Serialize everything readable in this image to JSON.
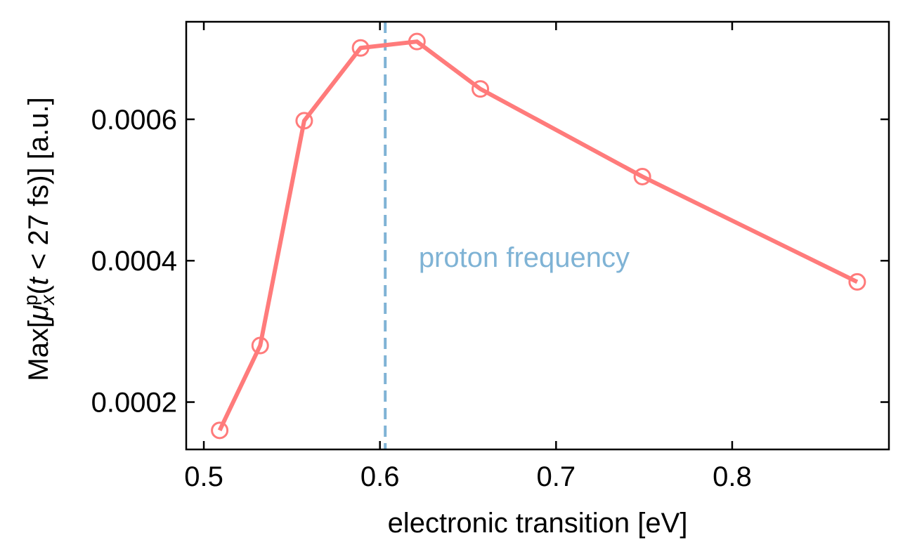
{
  "chart_data": {
    "type": "line",
    "title": "",
    "xlabel": "electronic transition [eV]",
    "ylabel": "Max[μₓᵖ(t < 27 fs)] [a.u.]",
    "xlim": [
      0.49,
      0.889
    ],
    "ylim": [
      0.000133,
      0.000738
    ],
    "xticks": [
      0.5,
      0.6,
      0.7,
      0.8
    ],
    "xtick_labels": [
      "0.5",
      "0.6",
      "0.7",
      "0.8"
    ],
    "yticks": [
      0.0002,
      0.0004,
      0.0006
    ],
    "ytick_labels": [
      "0.0002",
      "0.0004",
      "0.0006"
    ],
    "grid": false,
    "series": [
      {
        "x": [
          0.509,
          0.532,
          0.557,
          0.589,
          0.621,
          0.657,
          0.749,
          0.871
        ],
        "y": [
          0.00016,
          0.00028,
          0.000598,
          0.000701,
          0.00071,
          0.000643,
          0.000519,
          0.00037
        ],
        "color": "#ff7b7b",
        "marker": "open-circle"
      }
    ],
    "vline": {
      "x": 0.603,
      "color": "#7fb3d5",
      "style": "dashed"
    },
    "annotation": {
      "text": "proton frequency",
      "x": 0.622,
      "y": 0.000405,
      "color": "#7fb3d5"
    }
  }
}
